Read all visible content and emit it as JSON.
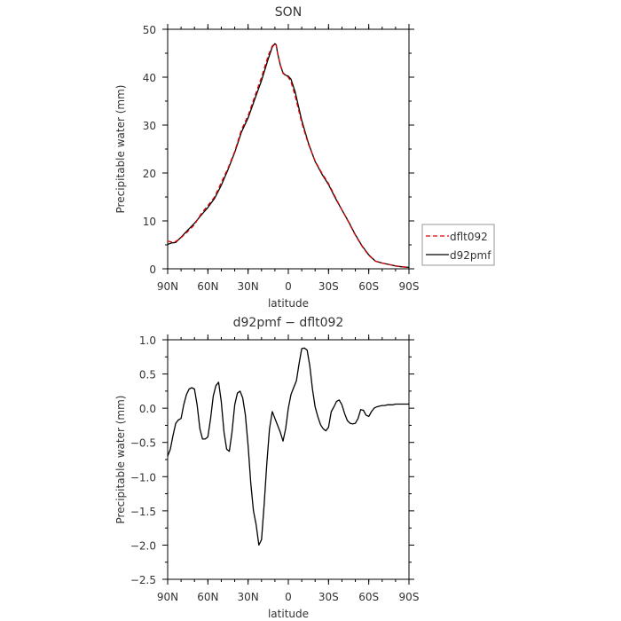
{
  "chart_data": [
    {
      "type": "line",
      "title": "SON",
      "xlabel": "latitude",
      "ylabel": "Precipitable water (mm)",
      "xlim": [
        90,
        -90
      ],
      "ylim": [
        0,
        50
      ],
      "xticks": [
        90,
        60,
        30,
        0,
        -30,
        -60,
        -90
      ],
      "xtick_labels": [
        "90N",
        "60N",
        "30N",
        "0",
        "30S",
        "60S",
        "90S"
      ],
      "yticks": [
        0,
        10,
        20,
        30,
        40,
        50
      ],
      "ytick_labels": [
        "0",
        "10",
        "20",
        "30",
        "40",
        "50"
      ],
      "grid": false,
      "legend_position": "outside-right",
      "series": [
        {
          "name": "dflt092",
          "color": "#dd0000",
          "dashed": true,
          "x": [
            90,
            87,
            84,
            80,
            75,
            70,
            65,
            60,
            55,
            50,
            45,
            40,
            35,
            30,
            25,
            20,
            15,
            12,
            10,
            9,
            8,
            6,
            4,
            2,
            0,
            -2,
            -5,
            -10,
            -15,
            -20,
            -25,
            -30,
            -35,
            -40,
            -45,
            -50,
            -55,
            -60,
            -65,
            -70,
            -75,
            -80,
            -85,
            -90
          ],
          "y": [
            5.8,
            5.6,
            5.7,
            6.5,
            7.8,
            9.2,
            11.5,
            13.2,
            15.0,
            18.0,
            21.0,
            24.5,
            29.0,
            32.0,
            36.0,
            40.0,
            44.5,
            46.5,
            47.0,
            46.8,
            45.0,
            42.5,
            40.8,
            40.3,
            40.0,
            39.0,
            36.2,
            30.5,
            26.0,
            22.5,
            20.0,
            17.8,
            15.0,
            12.3,
            9.7,
            7.0,
            4.7,
            2.8,
            1.6,
            1.2,
            0.9,
            0.6,
            0.4,
            0.3
          ]
        },
        {
          "name": "d92pmf",
          "color": "#000000",
          "dashed": false,
          "x": [
            90,
            87,
            84,
            80,
            75,
            70,
            65,
            60,
            55,
            50,
            45,
            40,
            35,
            30,
            25,
            20,
            15,
            12,
            10,
            9,
            8,
            6,
            4,
            2,
            0,
            -2,
            -5,
            -10,
            -15,
            -20,
            -25,
            -30,
            -35,
            -40,
            -45,
            -50,
            -55,
            -60,
            -65,
            -70,
            -75,
            -80,
            -85,
            -90
          ],
          "y": [
            5.1,
            5.4,
            5.5,
            6.6,
            8.1,
            9.5,
            11.2,
            12.8,
            14.7,
            17.4,
            20.7,
            24.3,
            28.5,
            31.5,
            35.4,
            39.3,
            43.8,
            46.3,
            47.0,
            46.7,
            45.0,
            42.6,
            40.9,
            40.4,
            40.2,
            39.6,
            37.0,
            31.0,
            26.2,
            22.4,
            19.8,
            17.6,
            14.8,
            12.3,
            9.8,
            7.1,
            4.8,
            2.9,
            1.6,
            1.2,
            0.9,
            0.6,
            0.4,
            0.3
          ]
        }
      ]
    },
    {
      "type": "line",
      "title": "d92pmf − dflt092",
      "xlabel": "latitude",
      "ylabel": "Precipitable water (mm)",
      "xlim": [
        90,
        -90
      ],
      "ylim": [
        -2.5,
        1.0
      ],
      "xticks": [
        90,
        60,
        30,
        0,
        -30,
        -60,
        -90
      ],
      "xtick_labels": [
        "90N",
        "60N",
        "30N",
        "0",
        "30S",
        "60S",
        "90S"
      ],
      "yticks": [
        -2.5,
        -2.0,
        -1.5,
        -1.0,
        -0.5,
        0.0,
        0.5,
        1.0
      ],
      "ytick_labels": [
        "−2.5",
        "−2.0",
        "−1.5",
        "−1.0",
        "−0.5",
        "0.0",
        "0.5",
        "1.0"
      ],
      "grid": false,
      "series": [
        {
          "color": "#000000",
          "dashed": false,
          "x": [
            90,
            88,
            86,
            84,
            82,
            80,
            78,
            76,
            74,
            72,
            70,
            68,
            66,
            64,
            62,
            60,
            58,
            56,
            54,
            52,
            50,
            48,
            46,
            44,
            42,
            40,
            38,
            36,
            34,
            32,
            30,
            28,
            26,
            24,
            22,
            20,
            18,
            16,
            14,
            12,
            10,
            8,
            6,
            4,
            2,
            0,
            -2,
            -4,
            -6,
            -8,
            -10,
            -12,
            -14,
            -16,
            -18,
            -20,
            -22,
            -24,
            -26,
            -28,
            -30,
            -32,
            -34,
            -36,
            -38,
            -40,
            -42,
            -44,
            -46,
            -48,
            -50,
            -52,
            -54,
            -56,
            -58,
            -60,
            -62,
            -64,
            -66,
            -68,
            -70,
            -72,
            -74,
            -76,
            -78,
            -80,
            -82,
            -84,
            -86,
            -88,
            -90
          ],
          "y": [
            -0.7,
            -0.6,
            -0.4,
            -0.22,
            -0.17,
            -0.15,
            0.05,
            0.2,
            0.28,
            0.3,
            0.28,
            0.05,
            -0.3,
            -0.45,
            -0.45,
            -0.42,
            -0.15,
            0.18,
            0.33,
            0.38,
            0.1,
            -0.35,
            -0.6,
            -0.63,
            -0.35,
            0.05,
            0.22,
            0.25,
            0.15,
            -0.1,
            -0.55,
            -1.1,
            -1.5,
            -1.7,
            -2.0,
            -1.92,
            -1.4,
            -0.8,
            -0.3,
            -0.05,
            -0.15,
            -0.25,
            -0.35,
            -0.48,
            -0.3,
            0.0,
            0.2,
            0.3,
            0.4,
            0.65,
            0.87,
            0.88,
            0.85,
            0.62,
            0.28,
            0.02,
            -0.12,
            -0.24,
            -0.3,
            -0.33,
            -0.28,
            -0.05,
            0.02,
            0.1,
            0.12,
            0.05,
            -0.08,
            -0.18,
            -0.22,
            -0.23,
            -0.22,
            -0.15,
            -0.02,
            -0.03,
            -0.1,
            -0.12,
            -0.05,
            0.0,
            0.02,
            0.03,
            0.04,
            0.04,
            0.05,
            0.05,
            0.05,
            0.06,
            0.06,
            0.06,
            0.06,
            0.06,
            0.06
          ]
        }
      ]
    }
  ]
}
